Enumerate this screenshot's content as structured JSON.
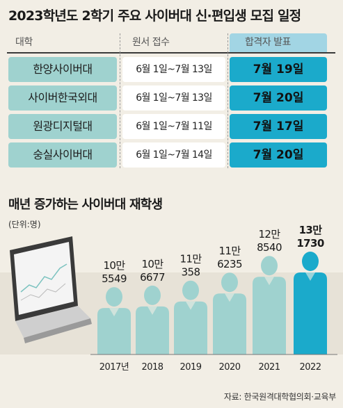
{
  "table": {
    "title": "2023학년도 2학기 주요 사이버대 신·편입생 모집 일정",
    "headers": {
      "university": "대학",
      "application": "원서 접수",
      "announcement": "합격자 발표"
    },
    "rows": [
      {
        "university": "한양사이버대",
        "application": "6월 1일~7월 13일",
        "announcement": "7월 19일"
      },
      {
        "university": "사이버한국외대",
        "application": "6월 1일~7월 13일",
        "announcement": "7월 20일"
      },
      {
        "university": "원광디지털대",
        "application": "6월 1일~7월 11일",
        "announcement": "7월 17일"
      },
      {
        "university": "숭실사이버대",
        "application": "6월 1일~7월 14일",
        "announcement": "7월 20일"
      }
    ]
  },
  "chart_data": {
    "type": "bar",
    "title": "매년 증가하는 사이버대 재학생",
    "unit": "(단위:명)",
    "categories": [
      "2017년",
      "2018",
      "2019",
      "2020",
      "2021",
      "2022"
    ],
    "values": [
      105549,
      106677,
      110358,
      116235,
      128540,
      131730
    ],
    "value_labels": [
      [
        "10만",
        "5549"
      ],
      [
        "10만",
        "6677"
      ],
      [
        "11만",
        "358"
      ],
      [
        "11만",
        "6235"
      ],
      [
        "12만",
        "8540"
      ],
      [
        "13만",
        "1730"
      ]
    ],
    "colors": {
      "bar": "#9fd2cf",
      "highlight": "#1baacb"
    },
    "source": "자료: 한국원격대학협의회·교육부"
  }
}
